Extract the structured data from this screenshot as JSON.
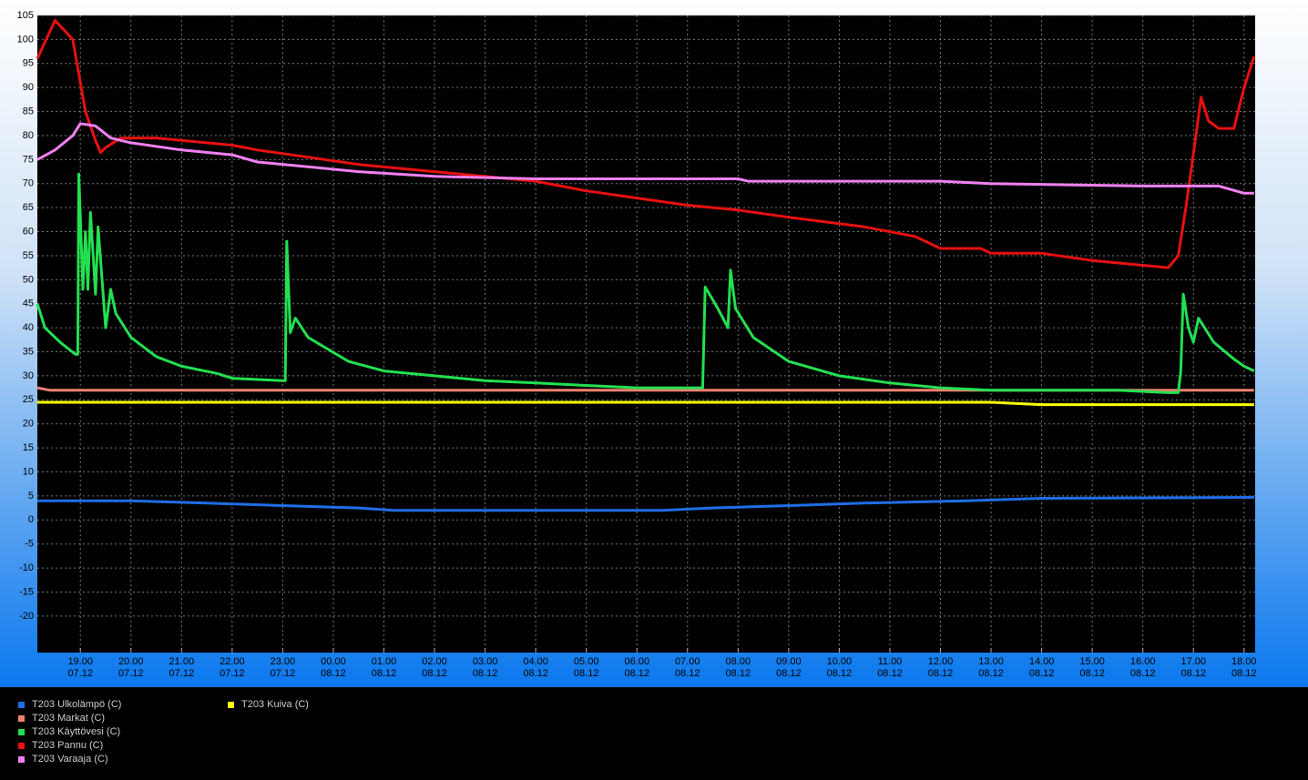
{
  "chart_data": {
    "type": "line",
    "xlim": [
      18.15,
      42.22
    ],
    "xticks": [
      {
        "value": 19,
        "label": "19.00\n07.12"
      },
      {
        "value": 20,
        "label": "20.00\n07.12"
      },
      {
        "value": 21,
        "label": "21.00\n07.12"
      },
      {
        "value": 22,
        "label": "22.00\n07.12"
      },
      {
        "value": 23,
        "label": "23.00\n07.12"
      },
      {
        "value": 24,
        "label": "00.00\n08.12"
      },
      {
        "value": 25,
        "label": "01.00\n08.12"
      },
      {
        "value": 26,
        "label": "02.00\n08.12"
      },
      {
        "value": 27,
        "label": "03.00\n08.12"
      },
      {
        "value": 28,
        "label": "04.00\n08.12"
      },
      {
        "value": 29,
        "label": "05.00\n08.12"
      },
      {
        "value": 30,
        "label": "06.00\n08.12"
      },
      {
        "value": 31,
        "label": "07.00\n08.12"
      },
      {
        "value": 32,
        "label": "08.00\n08.12"
      },
      {
        "value": 33,
        "label": "09.00\n08.12"
      },
      {
        "value": 34,
        "label": "10.00\n08.12"
      },
      {
        "value": 35,
        "label": "11.00\n08.12"
      },
      {
        "value": 36,
        "label": "12.00\n08.12"
      },
      {
        "value": 37,
        "label": "13.00\n08.12"
      },
      {
        "value": 38,
        "label": "14.00\n08.12"
      },
      {
        "value": 39,
        "label": "15.00\n08.12"
      },
      {
        "value": 40,
        "label": "16.00\n08.12"
      },
      {
        "value": 41,
        "label": "17.00\n08.12"
      },
      {
        "value": 42,
        "label": "18.00\n08.12"
      }
    ],
    "ylim": [
      -27.6,
      105
    ],
    "yticks": [
      105,
      100,
      95,
      90,
      85,
      80,
      75,
      70,
      65,
      60,
      55,
      50,
      45,
      40,
      35,
      30,
      25,
      20,
      15,
      10,
      5,
      0,
      -5,
      -10,
      -15,
      -20
    ],
    "grid": true,
    "series": [
      {
        "name": "T203 Ulkolämpö (C)",
        "color": "#1e6ee6",
        "x": [
          18.15,
          20,
          21.5,
          23,
          24.5,
          25.2,
          30.5,
          31.5,
          33,
          34.5,
          36.5,
          38,
          42.2
        ],
        "values": [
          4,
          4,
          3.5,
          3,
          2.5,
          2,
          2,
          2.5,
          3,
          3.5,
          4,
          4.5,
          4.7
        ]
      },
      {
        "name": "T203 Markat (C)",
        "color": "#f08070",
        "x": [
          18.15,
          18.4,
          30,
          42.2
        ],
        "values": [
          27.5,
          27,
          27,
          27
        ]
      },
      {
        "name": "T203 Käyttövesi (C)",
        "color": "#22e050",
        "x": [
          18.15,
          18.3,
          18.6,
          18.9,
          18.95,
          18.97,
          19.05,
          19.1,
          19.15,
          19.2,
          19.3,
          19.35,
          19.5,
          19.6,
          19.7,
          20,
          20.5,
          21,
          21.7,
          22,
          23,
          23.05,
          23.08,
          23.15,
          23.25,
          23.5,
          24.3,
          25,
          26,
          27,
          28,
          29,
          30,
          31.3,
          31.35,
          31.6,
          31.8,
          31.85,
          31.95,
          32.3,
          33,
          34,
          35,
          36,
          37,
          39.5,
          40.5,
          40.7,
          40.75,
          40.8,
          40.9,
          41,
          41.1,
          41.4,
          41.8,
          42,
          42.2
        ],
        "values": [
          45,
          40,
          37,
          34.5,
          34.5,
          72,
          48,
          60,
          48,
          64,
          47,
          61,
          40,
          48,
          43,
          38,
          34,
          32,
          30.5,
          29.5,
          29,
          29,
          58,
          39,
          42,
          38,
          33,
          31,
          30,
          29,
          28.5,
          28,
          27.5,
          27.5,
          48.5,
          44,
          40,
          52,
          44,
          38,
          33,
          30,
          28.5,
          27.5,
          27,
          27,
          26.5,
          26.5,
          31,
          47,
          40,
          37,
          42,
          37,
          33.5,
          32,
          31
        ]
      },
      {
        "name": "T203 Pannu (C)",
        "color": "#e81010",
        "x": [
          18.15,
          18.5,
          18.85,
          19.1,
          19.3,
          19.4,
          19.5,
          19.8,
          20.5,
          21,
          22,
          22.5,
          23.5,
          24.5,
          26,
          27,
          28,
          28.5,
          29,
          30,
          31,
          32,
          33,
          34.5,
          35.5,
          36,
          36.8,
          37,
          38,
          39,
          40,
          40.5,
          40.7,
          40.85,
          41.05,
          41.15,
          41.3,
          41.5,
          41.8,
          42,
          42.2
        ],
        "values": [
          96,
          104,
          100,
          85,
          79,
          76.5,
          77.5,
          79.5,
          79.5,
          79,
          78,
          77,
          75.5,
          74,
          72.5,
          71.5,
          70.5,
          69.5,
          68.5,
          67,
          65.5,
          64.5,
          63,
          61,
          59,
          56.5,
          56.5,
          55.5,
          55.5,
          54,
          53,
          52.5,
          55,
          65,
          80,
          88,
          83,
          81.5,
          81.5,
          90,
          96.5
        ]
      },
      {
        "name": "T203 Varaaja (C)",
        "color": "#f080f0",
        "x": [
          18.15,
          18.5,
          18.85,
          19,
          19.3,
          19.6,
          20,
          21,
          22,
          22.5,
          23.5,
          24.5,
          26,
          28,
          32,
          32.2,
          36,
          37,
          40,
          41.5,
          42,
          42.2
        ],
        "values": [
          75,
          77,
          80,
          82.5,
          82,
          79.5,
          78.5,
          77,
          76,
          74.5,
          73.5,
          72.5,
          71.5,
          71,
          71,
          70.5,
          70.5,
          70,
          69.5,
          69.5,
          68,
          68
        ]
      },
      {
        "name": "T203 Kuiva (C)",
        "color": "#ffff00",
        "x": [
          18.15,
          37,
          38,
          42.2
        ],
        "values": [
          24.5,
          24.5,
          24,
          24
        ]
      }
    ]
  }
}
